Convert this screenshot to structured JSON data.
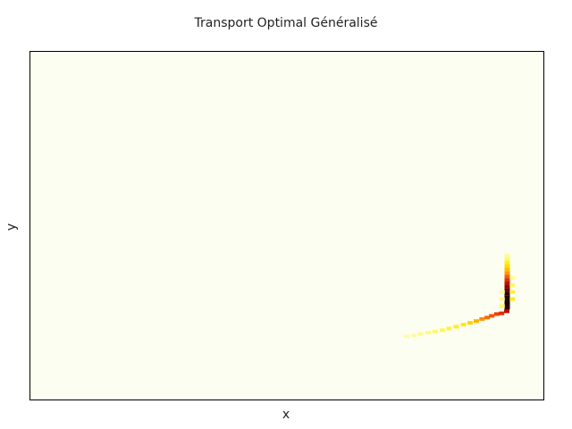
{
  "chart_data": {
    "type": "heatmap",
    "title": "Transport Optimal Généralisé",
    "xlabel": "x",
    "ylabel": "y",
    "xlim": [
      0,
      100
    ],
    "ylim": [
      0,
      100
    ],
    "grid": false,
    "colormap": {
      "name": "hot-reversed",
      "stops": [
        "#fdfef2",
        "#fffb8a",
        "#ffe600",
        "#ff9a00",
        "#f03800",
        "#a00000",
        "#000000"
      ]
    },
    "background_color": "#fdfef2",
    "frame_color": "#000000",
    "cells": [
      {
        "x": 73.3,
        "y": 18.3,
        "v": 0.12
      },
      {
        "x": 74.7,
        "y": 18.6,
        "v": 0.14
      },
      {
        "x": 76.0,
        "y": 19.0,
        "v": 0.16
      },
      {
        "x": 77.4,
        "y": 19.4,
        "v": 0.18
      },
      {
        "x": 78.8,
        "y": 19.7,
        "v": 0.2
      },
      {
        "x": 80.2,
        "y": 20.1,
        "v": 0.22
      },
      {
        "x": 81.5,
        "y": 20.6,
        "v": 0.25
      },
      {
        "x": 82.9,
        "y": 21.1,
        "v": 0.28
      },
      {
        "x": 84.3,
        "y": 21.7,
        "v": 0.32
      },
      {
        "x": 85.6,
        "y": 22.2,
        "v": 0.38
      },
      {
        "x": 86.8,
        "y": 22.7,
        "v": 0.45
      },
      {
        "x": 87.9,
        "y": 23.3,
        "v": 0.52
      },
      {
        "x": 88.9,
        "y": 23.7,
        "v": 0.58
      },
      {
        "x": 89.8,
        "y": 24.2,
        "v": 0.62
      },
      {
        "x": 90.8,
        "y": 24.7,
        "v": 0.66
      },
      {
        "x": 91.7,
        "y": 24.9,
        "v": 0.7
      },
      {
        "x": 92.7,
        "y": 25.5,
        "v": 0.78
      },
      {
        "x": 92.8,
        "y": 26.5,
        "v": 0.95
      },
      {
        "x": 92.8,
        "y": 27.5,
        "v": 0.97
      },
      {
        "x": 92.8,
        "y": 28.5,
        "v": 0.97
      },
      {
        "x": 92.8,
        "y": 29.5,
        "v": 0.97
      },
      {
        "x": 92.8,
        "y": 30.5,
        "v": 0.95
      },
      {
        "x": 92.8,
        "y": 31.5,
        "v": 0.9
      },
      {
        "x": 92.8,
        "y": 32.5,
        "v": 0.85
      },
      {
        "x": 92.8,
        "y": 33.5,
        "v": 0.78
      },
      {
        "x": 92.8,
        "y": 34.5,
        "v": 0.7
      },
      {
        "x": 92.8,
        "y": 35.5,
        "v": 0.6
      },
      {
        "x": 92.8,
        "y": 36.5,
        "v": 0.5
      },
      {
        "x": 92.8,
        "y": 37.5,
        "v": 0.42
      },
      {
        "x": 92.8,
        "y": 38.5,
        "v": 0.35
      },
      {
        "x": 92.8,
        "y": 39.5,
        "v": 0.28
      },
      {
        "x": 92.8,
        "y": 40.5,
        "v": 0.2
      },
      {
        "x": 92.8,
        "y": 41.5,
        "v": 0.14
      },
      {
        "x": 93.8,
        "y": 29.0,
        "v": 0.3
      },
      {
        "x": 93.8,
        "y": 31.0,
        "v": 0.26
      },
      {
        "x": 93.8,
        "y": 33.0,
        "v": 0.2
      },
      {
        "x": 93.8,
        "y": 35.0,
        "v": 0.15
      },
      {
        "x": 91.8,
        "y": 27.0,
        "v": 0.2
      },
      {
        "x": 91.8,
        "y": 29.0,
        "v": 0.18
      },
      {
        "x": 91.8,
        "y": 31.0,
        "v": 0.14
      }
    ]
  }
}
